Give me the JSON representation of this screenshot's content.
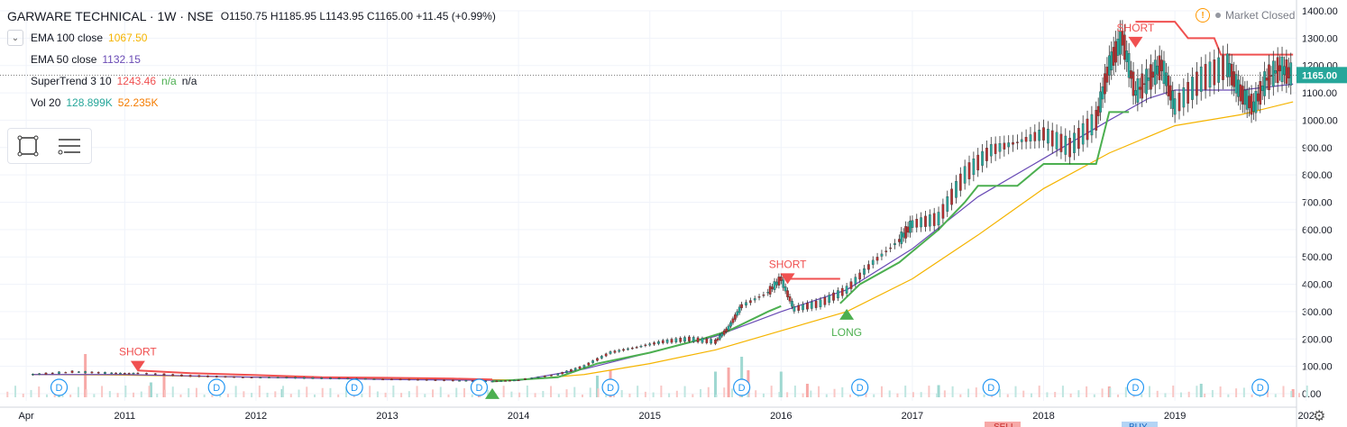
{
  "header": {
    "title": "GARWARE TECHNICAL · 1W · NSE",
    "ohlc": "O1150.75  H1185.95  L1143.95  C1165.00  +11.45 (+0.99%)",
    "market_status": "Market Closed"
  },
  "legend": {
    "ema100": {
      "label": "EMA 100 close",
      "value": "1067.50",
      "color": "#f5b400"
    },
    "ema50": {
      "label": "EMA 50 close",
      "value": "1132.15",
      "color": "#6a4bb5"
    },
    "supertrend": {
      "label": "SuperTrend 3 10",
      "value": "1243.46",
      "v2": "n/a",
      "v3": "n/a",
      "color": "#f05050"
    },
    "vol": {
      "label": "Vol 20",
      "value": "128.899K",
      "value2": "52.235K",
      "color": "#26a69a",
      "color2": "#f57c00"
    }
  },
  "toolbox": {
    "rect_icon": "rectangle-icon",
    "list_icon": "list-icon"
  },
  "chart_data": {
    "type": "line",
    "yticks": [
      "1400.00",
      "1300.00",
      "1200.00",
      "1100.00",
      "1000.00",
      "900.00",
      "800.00",
      "700.00",
      "600.00",
      "500.00",
      "400.00",
      "300.00",
      "200.00",
      "100.00",
      "0.00"
    ],
    "xticks": [
      "Apr",
      "2011",
      "2012",
      "2013",
      "2014",
      "2015",
      "2016",
      "2017",
      "2018",
      "2019",
      "202"
    ],
    "last_price": "1165.00",
    "ylim": [
      0,
      1400
    ],
    "price": [
      [
        2010.3,
        70
      ],
      [
        2010.6,
        80
      ],
      [
        2010.9,
        75
      ],
      [
        2011.1,
        75
      ],
      [
        2011.5,
        65
      ],
      [
        2011.9,
        60
      ],
      [
        2012.3,
        58
      ],
      [
        2012.7,
        55
      ],
      [
        2013.1,
        52
      ],
      [
        2013.5,
        48
      ],
      [
        2013.8,
        45
      ],
      [
        2014.0,
        50
      ],
      [
        2014.3,
        70
      ],
      [
        2014.5,
        100
      ],
      [
        2014.7,
        150
      ],
      [
        2014.9,
        170
      ],
      [
        2015.1,
        190
      ],
      [
        2015.3,
        200
      ],
      [
        2015.5,
        190
      ],
      [
        2015.6,
        240
      ],
      [
        2015.7,
        320
      ],
      [
        2015.9,
        370
      ],
      [
        2016.0,
        420
      ],
      [
        2016.1,
        310
      ],
      [
        2016.3,
        330
      ],
      [
        2016.5,
        380
      ],
      [
        2016.7,
        480
      ],
      [
        2016.9,
        560
      ],
      [
        2017.0,
        620
      ],
      [
        2017.2,
        640
      ],
      [
        2017.4,
        800
      ],
      [
        2017.6,
        890
      ],
      [
        2017.8,
        920
      ],
      [
        2018.0,
        950
      ],
      [
        2018.2,
        900
      ],
      [
        2018.4,
        1000
      ],
      [
        2018.5,
        1200
      ],
      [
        2018.6,
        1300
      ],
      [
        2018.7,
        1100
      ],
      [
        2018.8,
        1150
      ],
      [
        2018.9,
        1200
      ],
      [
        2019.0,
        1050
      ],
      [
        2019.2,
        1150
      ],
      [
        2019.4,
        1200
      ],
      [
        2019.5,
        1100
      ],
      [
        2019.6,
        1050
      ],
      [
        2019.7,
        1150
      ],
      [
        2019.8,
        1190
      ],
      [
        2019.9,
        1165
      ]
    ],
    "ema100": [
      [
        2010.3,
        70
      ],
      [
        2011.0,
        68
      ],
      [
        2012.0,
        60
      ],
      [
        2013.0,
        55
      ],
      [
        2014.0,
        50
      ],
      [
        2014.5,
        70
      ],
      [
        2015.0,
        110
      ],
      [
        2015.5,
        160
      ],
      [
        2016.0,
        230
      ],
      [
        2016.5,
        300
      ],
      [
        2017.0,
        420
      ],
      [
        2017.5,
        580
      ],
      [
        2018.0,
        750
      ],
      [
        2018.5,
        880
      ],
      [
        2019.0,
        980
      ],
      [
        2019.5,
        1020
      ],
      [
        2019.9,
        1067
      ]
    ],
    "ema50": [
      [
        2010.3,
        70
      ],
      [
        2011.0,
        70
      ],
      [
        2012.0,
        60
      ],
      [
        2013.0,
        52
      ],
      [
        2014.0,
        48
      ],
      [
        2014.5,
        90
      ],
      [
        2015.0,
        150
      ],
      [
        2015.5,
        210
      ],
      [
        2016.0,
        300
      ],
      [
        2016.5,
        380
      ],
      [
        2017.0,
        530
      ],
      [
        2017.5,
        720
      ],
      [
        2018.0,
        860
      ],
      [
        2018.5,
        1000
      ],
      [
        2018.8,
        1080
      ],
      [
        2019.0,
        1110
      ],
      [
        2019.5,
        1110
      ],
      [
        2019.9,
        1132
      ]
    ],
    "supertrend_down": [
      [
        2011.1,
        85
      ],
      [
        2011.5,
        75
      ],
      [
        2012.0,
        68
      ],
      [
        2012.5,
        60
      ],
      [
        2013.0,
        58
      ],
      [
        2013.5,
        55
      ],
      [
        2013.8,
        52
      ]
    ],
    "supertrend_up": [
      [
        2013.8,
        45
      ],
      [
        2014.3,
        60
      ],
      [
        2014.6,
        110
      ],
      [
        2015.0,
        150
      ],
      [
        2015.4,
        200
      ],
      [
        2015.6,
        230
      ],
      [
        2015.9,
        300
      ],
      [
        2016.0,
        320
      ]
    ],
    "supertrend_down2": [
      [
        2016.05,
        420
      ],
      [
        2016.45,
        420
      ]
    ],
    "supertrend_up2": [
      [
        2016.45,
        330
      ],
      [
        2016.6,
        400
      ],
      [
        2016.9,
        480
      ],
      [
        2017.0,
        520
      ],
      [
        2017.2,
        600
      ],
      [
        2017.4,
        700
      ],
      [
        2017.5,
        760
      ],
      [
        2017.8,
        760
      ],
      [
        2018.0,
        840
      ],
      [
        2018.4,
        840
      ],
      [
        2018.5,
        1030
      ],
      [
        2018.65,
        1030
      ]
    ],
    "supertrend_down3": [
      [
        2018.7,
        1360
      ],
      [
        2019.0,
        1360
      ],
      [
        2019.1,
        1300
      ],
      [
        2019.3,
        1300
      ],
      [
        2019.35,
        1240
      ],
      [
        2019.9,
        1240
      ]
    ],
    "volume": [
      [
        2010.5,
        60
      ],
      [
        2010.7,
        160
      ],
      [
        2011.2,
        55
      ],
      [
        2011.3,
        90
      ],
      [
        2012.2,
        30
      ],
      [
        2013.7,
        40
      ],
      [
        2014.6,
        80
      ],
      [
        2014.7,
        100
      ],
      [
        2015.5,
        95
      ],
      [
        2015.6,
        110
      ],
      [
        2015.7,
        150
      ],
      [
        2015.75,
        100
      ],
      [
        2016.0,
        95
      ],
      [
        2016.2,
        50
      ],
      [
        2017.2,
        45
      ],
      [
        2018.5,
        40
      ],
      [
        2019.2,
        50
      ],
      [
        2019.9,
        30
      ]
    ],
    "signals": [
      {
        "label": "SHORT",
        "x": 2011.1,
        "y": 120,
        "kind": "short"
      },
      {
        "label": "SHORT",
        "x": 2016.05,
        "y": 440,
        "kind": "short"
      },
      {
        "label": "SHORT",
        "x": 2018.7,
        "y": 1305,
        "kind": "short"
      },
      {
        "label": "LONG",
        "x": 2016.5,
        "y": 310,
        "kind": "long"
      },
      {
        "label": "",
        "x": 2013.8,
        "y": 20,
        "kind": "long"
      }
    ],
    "dividends": [
      2010.5,
      2011.7,
      2012.75,
      2013.7,
      2014.7,
      2015.7,
      2016.6,
      2017.6,
      2018.7,
      2019.65
    ],
    "dividend_label": "D",
    "bottom_badges": [
      "SELL",
      "BUY"
    ]
  }
}
